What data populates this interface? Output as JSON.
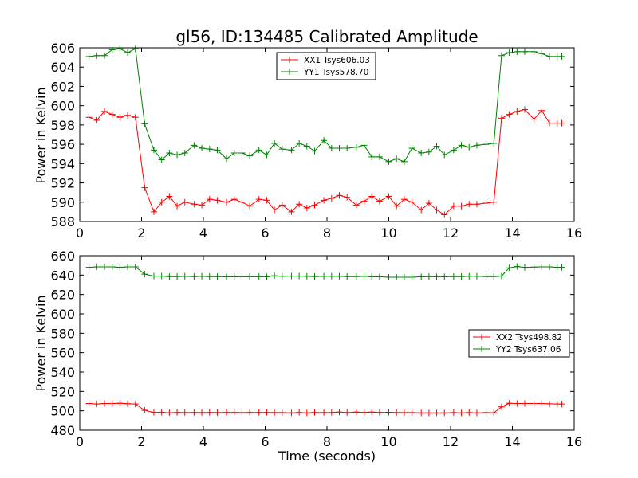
{
  "chart_data": [
    {
      "type": "line",
      "title": "gl56, ID:134485 Calibrated Amplitude",
      "xlabel": "",
      "ylabel": "Power in Kelvin",
      "xlim": [
        0,
        16
      ],
      "ylim": [
        588,
        606
      ],
      "xticks": [
        0,
        2,
        4,
        6,
        8,
        10,
        12,
        14,
        16
      ],
      "yticks": [
        588,
        590,
        592,
        594,
        596,
        598,
        600,
        602,
        604,
        606
      ],
      "legend_position": "top-center",
      "series": [
        {
          "name": "XX1 Tsys606.03",
          "color": "#ff0000",
          "x": [
            0.3,
            0.55,
            0.8,
            1.05,
            1.3,
            1.55,
            1.8,
            2.1,
            2.4,
            2.65,
            2.9,
            3.15,
            3.4,
            3.7,
            3.95,
            4.2,
            4.45,
            4.75,
            5.0,
            5.25,
            5.5,
            5.8,
            6.05,
            6.3,
            6.55,
            6.85,
            7.1,
            7.35,
            7.6,
            7.9,
            8.15,
            8.4,
            8.65,
            8.95,
            9.2,
            9.45,
            9.7,
            10.0,
            10.25,
            10.5,
            10.75,
            11.05,
            11.3,
            11.55,
            11.8,
            12.1,
            12.35,
            12.6,
            12.85,
            13.15,
            13.4,
            13.65,
            13.9,
            14.15,
            14.4,
            14.7,
            14.95,
            15.2,
            15.45,
            15.6
          ],
          "y": [
            598.8,
            598.5,
            599.4,
            599.1,
            598.8,
            599.0,
            598.8,
            591.5,
            589.0,
            590.0,
            590.6,
            589.6,
            590.0,
            589.8,
            589.7,
            590.3,
            590.2,
            590.0,
            590.3,
            590.0,
            589.6,
            590.3,
            590.2,
            589.2,
            589.7,
            589.0,
            589.8,
            589.4,
            589.7,
            590.2,
            590.4,
            590.7,
            590.5,
            589.7,
            590.1,
            590.6,
            590.1,
            590.6,
            589.6,
            590.3,
            590.0,
            589.2,
            589.9,
            589.2,
            588.7,
            589.6,
            589.6,
            589.8,
            589.8,
            589.9,
            590.0,
            598.7,
            599.1,
            599.4,
            599.6,
            598.6,
            599.5,
            598.2,
            598.2,
            598.2
          ]
        },
        {
          "name": "YY1 Tsys578.70",
          "color": "#008000",
          "x": [
            0.3,
            0.55,
            0.8,
            1.05,
            1.3,
            1.55,
            1.8,
            2.1,
            2.4,
            2.65,
            2.9,
            3.15,
            3.4,
            3.7,
            3.95,
            4.2,
            4.45,
            4.75,
            5.0,
            5.25,
            5.5,
            5.8,
            6.05,
            6.3,
            6.55,
            6.85,
            7.1,
            7.35,
            7.6,
            7.9,
            8.15,
            8.4,
            8.65,
            8.95,
            9.2,
            9.45,
            9.7,
            10.0,
            10.25,
            10.5,
            10.75,
            11.05,
            11.3,
            11.55,
            11.8,
            12.1,
            12.35,
            12.6,
            12.85,
            13.15,
            13.4,
            13.65,
            13.9,
            14.15,
            14.4,
            14.7,
            14.95,
            15.2,
            15.45,
            15.6
          ],
          "y": [
            605.1,
            605.2,
            605.2,
            605.8,
            605.9,
            605.5,
            605.9,
            598.1,
            595.4,
            594.4,
            595.1,
            594.9,
            595.1,
            595.9,
            595.6,
            595.5,
            595.4,
            594.5,
            595.1,
            595.1,
            594.8,
            595.4,
            594.9,
            596.1,
            595.5,
            595.4,
            596.1,
            595.8,
            595.3,
            596.4,
            595.6,
            595.6,
            595.6,
            595.7,
            595.9,
            594.7,
            594.7,
            594.2,
            594.5,
            594.2,
            595.6,
            595.1,
            595.2,
            595.8,
            594.9,
            595.4,
            595.9,
            595.7,
            595.9,
            596.0,
            596.1,
            605.2,
            605.5,
            605.6,
            605.6,
            605.6,
            605.4,
            605.1,
            605.1,
            605.1
          ]
        }
      ]
    },
    {
      "type": "line",
      "title": "",
      "xlabel": "Time (seconds)",
      "ylabel": "Power in Kelvin",
      "xlim": [
        0,
        16
      ],
      "ylim": [
        480,
        660
      ],
      "xticks": [
        0,
        2,
        4,
        6,
        8,
        10,
        12,
        14,
        16
      ],
      "yticks": [
        480,
        500,
        520,
        540,
        560,
        580,
        600,
        620,
        640,
        660
      ],
      "legend_position": "center-right",
      "series": [
        {
          "name": "XX2 Tsys498.82",
          "color": "#ff0000",
          "x": [
            0.3,
            0.55,
            0.8,
            1.05,
            1.3,
            1.55,
            1.8,
            2.1,
            2.4,
            2.65,
            2.9,
            3.15,
            3.4,
            3.7,
            3.95,
            4.2,
            4.45,
            4.75,
            5.0,
            5.25,
            5.5,
            5.8,
            6.05,
            6.3,
            6.55,
            6.85,
            7.1,
            7.35,
            7.6,
            7.9,
            8.15,
            8.4,
            8.65,
            8.95,
            9.2,
            9.45,
            9.7,
            10.0,
            10.25,
            10.5,
            10.75,
            11.05,
            11.3,
            11.55,
            11.8,
            12.1,
            12.35,
            12.6,
            12.85,
            13.15,
            13.4,
            13.65,
            13.9,
            14.15,
            14.4,
            14.7,
            14.95,
            15.2,
            15.45,
            15.6
          ],
          "y": [
            507.5,
            507.0,
            507.5,
            507.5,
            507.8,
            507.3,
            507.0,
            500.5,
            498.3,
            498.5,
            498.0,
            498.3,
            498.2,
            498.3,
            498.2,
            498.3,
            498.2,
            498.3,
            498.3,
            498.2,
            498.3,
            498.3,
            498.3,
            498.2,
            498.2,
            497.8,
            498.3,
            497.8,
            498.3,
            498.2,
            498.3,
            498.7,
            498.2,
            498.7,
            498.3,
            498.7,
            498.3,
            498.5,
            498.2,
            498.2,
            498.2,
            497.8,
            497.8,
            497.8,
            497.8,
            498.2,
            497.8,
            498.2,
            497.8,
            498.2,
            498.0,
            504.0,
            507.8,
            507.5,
            507.5,
            507.5,
            507.5,
            507.2,
            507.0,
            507.0
          ]
        },
        {
          "name": "YY2 Tsys637.06",
          "color": "#008000",
          "x": [
            0.3,
            0.55,
            0.8,
            1.05,
            1.3,
            1.55,
            1.8,
            2.1,
            2.4,
            2.65,
            2.9,
            3.15,
            3.4,
            3.7,
            3.95,
            4.2,
            4.45,
            4.75,
            5.0,
            5.25,
            5.5,
            5.8,
            6.05,
            6.3,
            6.55,
            6.85,
            7.1,
            7.35,
            7.6,
            7.9,
            8.15,
            8.4,
            8.65,
            8.95,
            9.2,
            9.45,
            9.7,
            10.0,
            10.25,
            10.5,
            10.75,
            11.05,
            11.3,
            11.55,
            11.8,
            12.1,
            12.35,
            12.6,
            12.85,
            13.15,
            13.4,
            13.65,
            13.9,
            14.15,
            14.4,
            14.7,
            14.95,
            15.2,
            15.45,
            15.6
          ],
          "y": [
            648.0,
            648.5,
            648.5,
            648.5,
            648.0,
            648.5,
            648.5,
            641.0,
            639.0,
            639.0,
            638.5,
            638.5,
            638.8,
            638.5,
            638.8,
            638.5,
            638.5,
            638.3,
            638.3,
            638.5,
            638.3,
            638.5,
            638.3,
            639.3,
            638.8,
            639.0,
            639.0,
            638.8,
            638.5,
            638.8,
            638.8,
            638.8,
            638.5,
            638.5,
            638.8,
            638.3,
            638.3,
            637.8,
            637.8,
            637.8,
            637.8,
            638.3,
            638.5,
            638.3,
            638.3,
            638.5,
            638.5,
            638.8,
            638.8,
            638.5,
            638.5,
            639.0,
            647.5,
            648.8,
            648.0,
            648.3,
            648.5,
            648.5,
            648.0,
            648.0
          ]
        }
      ]
    }
  ]
}
